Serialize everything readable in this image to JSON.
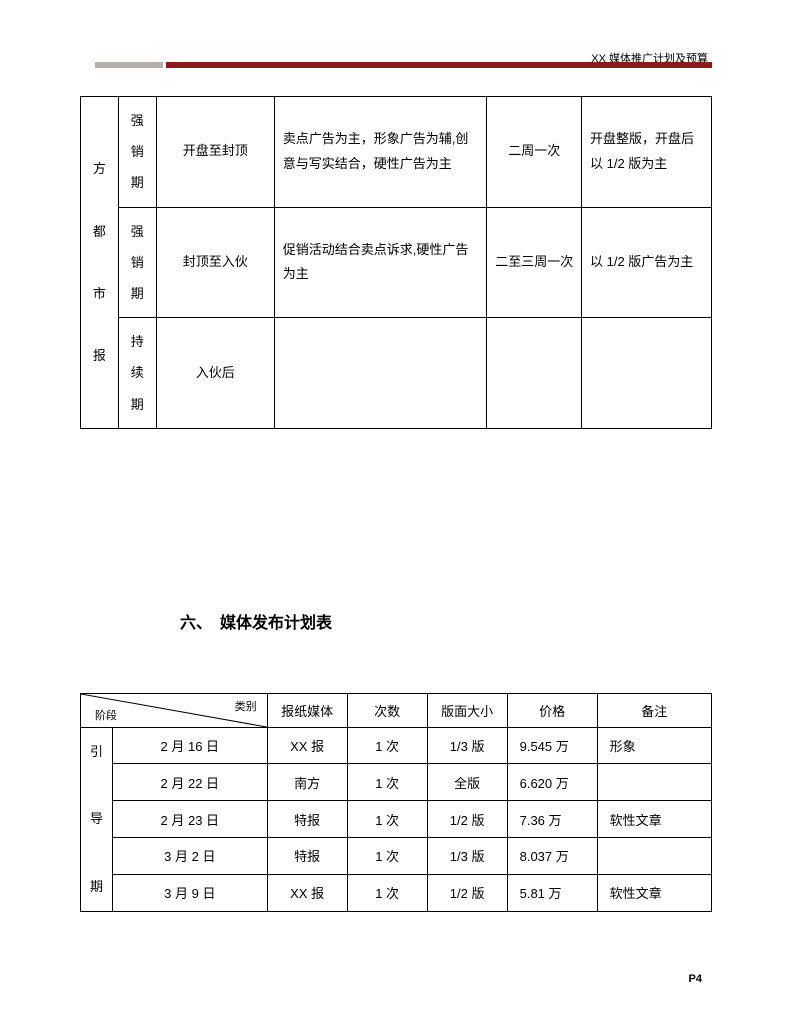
{
  "header": {
    "title": "XX 媒体推广计划及预算",
    "accent_color": "#8b1a1a",
    "gray_color": "#b5b0ac"
  },
  "table1": {
    "col0_text": "方\n\n都\n\n市\n\n报",
    "rows": [
      {
        "phase": "强\n销\n期",
        "time": "开盘至封顶",
        "content": "卖点广告为主，形象广告为辅,创意与写实结合，硬性广告为主",
        "freq": "二周一次",
        "format": "开盘整版，开盘后以 1/2 版为主"
      },
      {
        "phase": "强\n销\n期",
        "time": "封顶至入伙",
        "content": "促销活动结合卖点诉求,硬性广告为主",
        "freq": "二至三周一次",
        "format": "以 1/2 版广告为主"
      },
      {
        "phase": "持\n续\n期",
        "time": "入伙后",
        "content": "",
        "freq": "",
        "format": ""
      }
    ]
  },
  "section_heading": "六、　媒体发布计划表",
  "table2": {
    "diag_top": "类别",
    "diag_bot": "阶段",
    "headers": [
      "报纸媒体",
      "次数",
      "版面大小",
      "价格",
      "备注"
    ],
    "phase_col": "引\n\n导\n\n期",
    "rows": [
      {
        "date": "2 月 16 日",
        "media": "XX 报",
        "times": "1 次",
        "size": "1/3 版",
        "price": "9.545 万",
        "note": "形象"
      },
      {
        "date": "2 月 22 日",
        "media": "南方",
        "times": "1 次",
        "size": "全版",
        "price": "6.620 万",
        "note": ""
      },
      {
        "date": "2 月 23 日",
        "media": "特报",
        "times": "1 次",
        "size": "1/2 版",
        "price": "7.36 万",
        "note": "软性文章"
      },
      {
        "date": "3 月 2 日",
        "media": "特报",
        "times": "1 次",
        "size": "1/3 版",
        "price": "8.037 万",
        "note": ""
      },
      {
        "date": "3 月 9 日",
        "media": "XX 报",
        "times": "1 次",
        "size": "1/2 版",
        "price": "5.81 万",
        "note": "软性文章"
      }
    ]
  },
  "page_number": "P4"
}
